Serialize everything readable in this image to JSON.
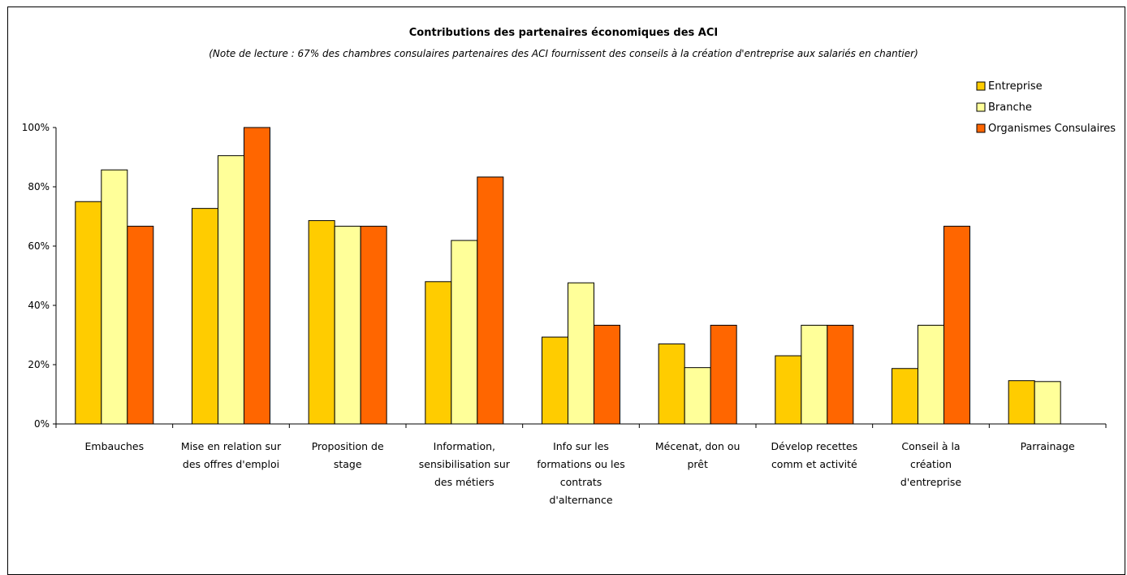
{
  "chart_data": {
    "type": "bar",
    "title": "Contributions des partenaires économiques des ACI",
    "subtitle": "(Note de lecture : 67% des chambres consulaires partenaires des ACI fournissent des conseils à la création d'entreprise aux salariés en chantier)",
    "categories": [
      [
        "Embauches"
      ],
      [
        "Mise en relation sur",
        "des offres d'emploi"
      ],
      [
        "Proposition de",
        "stage"
      ],
      [
        "Information,",
        "sensibilisation sur",
        "des métiers"
      ],
      [
        "Info sur les",
        "formations ou les",
        "contrats",
        "d'alternance"
      ],
      [
        "Mécenat, don ou",
        "prêt"
      ],
      [
        "Dévelop recettes",
        "comm et activité"
      ],
      [
        "Conseil à la",
        "création",
        "d'entreprise"
      ],
      [
        "Parrainage"
      ]
    ],
    "series": [
      {
        "name": "Entreprise",
        "color": "#FFCC00",
        "values": [
          75,
          72.7,
          68.6,
          48,
          29.3,
          27,
          23,
          18.7,
          14.6
        ]
      },
      {
        "name": "Branche",
        "color": "#FFFF99",
        "values": [
          85.7,
          90.5,
          66.7,
          61.9,
          47.6,
          19,
          33.3,
          33.3,
          14.3
        ]
      },
      {
        "name": "Organismes Consulaires",
        "color": "#FF6600",
        "values": [
          66.7,
          100,
          66.7,
          83.3,
          33.3,
          33.3,
          33.3,
          66.7,
          null
        ]
      }
    ],
    "ylim": [
      0,
      100
    ],
    "yticks": [
      "0%",
      "20%",
      "40%",
      "60%",
      "80%",
      "100%"
    ],
    "legend_position": "top-right",
    "grid": false
  }
}
